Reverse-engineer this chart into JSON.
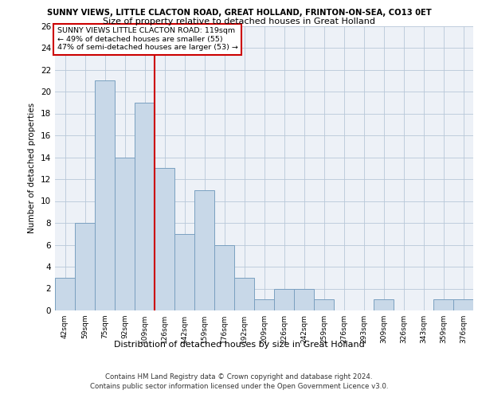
{
  "title1": "SUNNY VIEWS, LITTLE CLACTON ROAD, GREAT HOLLAND, FRINTON-ON-SEA, CO13 0ET",
  "title2": "Size of property relative to detached houses in Great Holland",
  "xlabel": "Distribution of detached houses by size in Great Holland",
  "ylabel": "Number of detached properties",
  "categories": [
    "42sqm",
    "59sqm",
    "75sqm",
    "92sqm",
    "109sqm",
    "126sqm",
    "142sqm",
    "159sqm",
    "176sqm",
    "192sqm",
    "209sqm",
    "226sqm",
    "242sqm",
    "259sqm",
    "276sqm",
    "293sqm",
    "309sqm",
    "326sqm",
    "343sqm",
    "359sqm",
    "376sqm"
  ],
  "values": [
    3,
    8,
    21,
    14,
    19,
    13,
    7,
    11,
    6,
    3,
    1,
    2,
    2,
    1,
    0,
    0,
    1,
    0,
    0,
    1,
    1
  ],
  "bar_color": "#c8d8e8",
  "bar_edge_color": "#7aa0c0",
  "vline_x_idx": 4,
  "vline_color": "#cc0000",
  "ylim": [
    0,
    26
  ],
  "yticks": [
    0,
    2,
    4,
    6,
    8,
    10,
    12,
    14,
    16,
    18,
    20,
    22,
    24,
    26
  ],
  "annotation_text": "SUNNY VIEWS LITTLE CLACTON ROAD: 119sqm\n← 49% of detached houses are smaller (55)\n47% of semi-detached houses are larger (53) →",
  "annotation_box_color": "#ffffff",
  "annotation_border_color": "#cc0000",
  "footer1": "Contains HM Land Registry data © Crown copyright and database right 2024.",
  "footer2": "Contains public sector information licensed under the Open Government Licence v3.0.",
  "plot_bg_color": "#edf1f7"
}
